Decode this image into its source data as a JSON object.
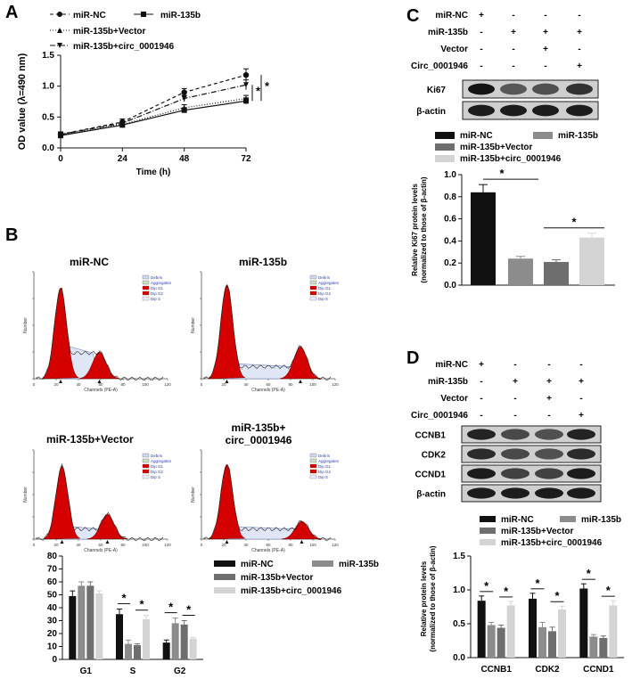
{
  "panels": {
    "a": "A",
    "b": "B",
    "c": "C",
    "d": "D"
  },
  "legend_a": [
    "miR-NC",
    "miR-135b",
    "miR-135b+Vector",
    "miR-135b+circ_0001946"
  ],
  "legend_bars": [
    "miR-NC",
    "miR-135b",
    "miR-135b+Vector",
    "miR-135b+circ_0001946"
  ],
  "flow_titles": [
    "miR-NC",
    "miR-135b",
    "miR-135b+Vector",
    "miR-135b+",
    "circ_0001946"
  ],
  "flow_axis": {
    "xlabel": "Channels (PE-A)",
    "ylabel": "Number",
    "legend": [
      "Debris",
      "Aggregates",
      "Dip G1",
      "Dip G2",
      "Dip S"
    ]
  },
  "blot_c": {
    "rows": [
      {
        "label": "miR-NC",
        "signs": [
          "+",
          "-",
          "-",
          "-"
        ]
      },
      {
        "label": "miR-135b",
        "signs": [
          "-",
          "+",
          "+",
          "+"
        ]
      },
      {
        "label": "Vector",
        "signs": [
          "-",
          "-",
          "+",
          "-"
        ]
      },
      {
        "label": "Circ_0001946",
        "signs": [
          "-",
          "-",
          "-",
          "+"
        ]
      }
    ],
    "bands": [
      "Ki67",
      "β-actin"
    ]
  },
  "blot_d": {
    "rows": [
      {
        "label": "miR-NC",
        "signs": [
          "+",
          "-",
          "-",
          "-"
        ]
      },
      {
        "label": "miR-135b",
        "signs": [
          "-",
          "+",
          "+",
          "+"
        ]
      },
      {
        "label": "Vector",
        "signs": [
          "-",
          "-",
          "+",
          "-"
        ]
      },
      {
        "label": "Circ_0001946",
        "signs": [
          "-",
          "-",
          "-",
          "+"
        ]
      }
    ],
    "bands": [
      "CCNB1",
      "CDK2",
      "CCND1",
      "β-actin"
    ]
  },
  "colors": {
    "c1": "#111111",
    "c2": "#8c8c8c",
    "c3": "#6e6e6e",
    "c4": "#d4d4d4",
    "red": "#d40000"
  },
  "chart_data": [
    {
      "id": "A",
      "type": "line",
      "xlabel": "Time (h)",
      "ylabel": "OD value (λ=490 nm)",
      "x": [
        0,
        24,
        48,
        72
      ],
      "xticks": [
        "0",
        "24",
        "48",
        "72"
      ],
      "ylim": [
        0,
        1.5
      ],
      "yticks": [
        "0.0",
        "0.5",
        "1.0",
        "1.5"
      ],
      "series": [
        {
          "name": "miR-NC",
          "values": [
            0.22,
            0.42,
            0.9,
            1.18
          ],
          "err": [
            0.04,
            0.05,
            0.06,
            0.1
          ]
        },
        {
          "name": "miR-135b",
          "values": [
            0.2,
            0.37,
            0.61,
            0.76
          ],
          "err": [
            0.03,
            0.04,
            0.04,
            0.05
          ]
        },
        {
          "name": "miR-135b+Vector",
          "values": [
            0.21,
            0.38,
            0.65,
            0.8
          ],
          "err": [
            0.03,
            0.04,
            0.05,
            0.05
          ]
        },
        {
          "name": "miR-135b+circ_0001946",
          "values": [
            0.22,
            0.4,
            0.8,
            1.02
          ],
          "err": [
            0.03,
            0.04,
            0.05,
            0.08
          ]
        }
      ],
      "annotations": [
        "*",
        "*"
      ]
    },
    {
      "id": "B",
      "type": "bar",
      "categories": [
        "G1",
        "S",
        "G2"
      ],
      "ylim": [
        0,
        80
      ],
      "yticks": [
        "0",
        "10",
        "20",
        "30",
        "40",
        "50",
        "60",
        "70",
        "80"
      ],
      "series": [
        {
          "name": "miR-NC",
          "values": [
            49,
            35,
            13
          ],
          "err": [
            4,
            4,
            2
          ]
        },
        {
          "name": "miR-135b",
          "values": [
            57,
            12,
            28
          ],
          "err": [
            3,
            3,
            4
          ]
        },
        {
          "name": "miR-135b+Vector",
          "values": [
            57,
            11,
            27
          ],
          "err": [
            3,
            1,
            3
          ]
        },
        {
          "name": "miR-135b+circ_0001946",
          "values": [
            51,
            31,
            16
          ],
          "err": [
            2,
            3,
            1
          ]
        }
      ],
      "annotations": [
        "*",
        "*",
        "*",
        "*"
      ]
    },
    {
      "id": "C",
      "type": "bar",
      "categories": [
        "miR-NC",
        "miR-135b",
        "miR-135b+Vector",
        "miR-135b+circ_0001946"
      ],
      "ylabel": "Relative Ki67 protein levels (normalized to those of β-actin)",
      "ylim": [
        0,
        1.0
      ],
      "yticks": [
        "0.0",
        "0.2",
        "0.4",
        "0.6",
        "0.8",
        "1.0"
      ],
      "values": [
        0.84,
        0.24,
        0.21,
        0.43
      ],
      "err": [
        0.07,
        0.02,
        0.02,
        0.04
      ],
      "annotations": [
        "*",
        "*"
      ]
    },
    {
      "id": "D",
      "type": "bar",
      "categories": [
        "CCNB1",
        "CDK2",
        "CCND1"
      ],
      "ylabel": "Relative protein levels (normalized to those of β-actin)",
      "ylim": [
        0,
        1.5
      ],
      "yticks": [
        "0.0",
        "0.5",
        "1.0",
        "1.5"
      ],
      "series": [
        {
          "name": "miR-NC",
          "values": [
            0.84,
            0.87,
            1.02
          ],
          "err": [
            0.07,
            0.08,
            0.07
          ]
        },
        {
          "name": "miR-135b",
          "values": [
            0.48,
            0.45,
            0.31
          ],
          "err": [
            0.04,
            0.07,
            0.03
          ]
        },
        {
          "name": "miR-135b+Vector",
          "values": [
            0.44,
            0.39,
            0.29
          ],
          "err": [
            0.04,
            0.06,
            0.03
          ]
        },
        {
          "name": "miR-135b+circ_0001946",
          "values": [
            0.77,
            0.71,
            0.77
          ],
          "err": [
            0.06,
            0.05,
            0.07
          ]
        }
      ],
      "annotations": [
        "*",
        "*",
        "*",
        "*",
        "*",
        "*"
      ]
    }
  ]
}
